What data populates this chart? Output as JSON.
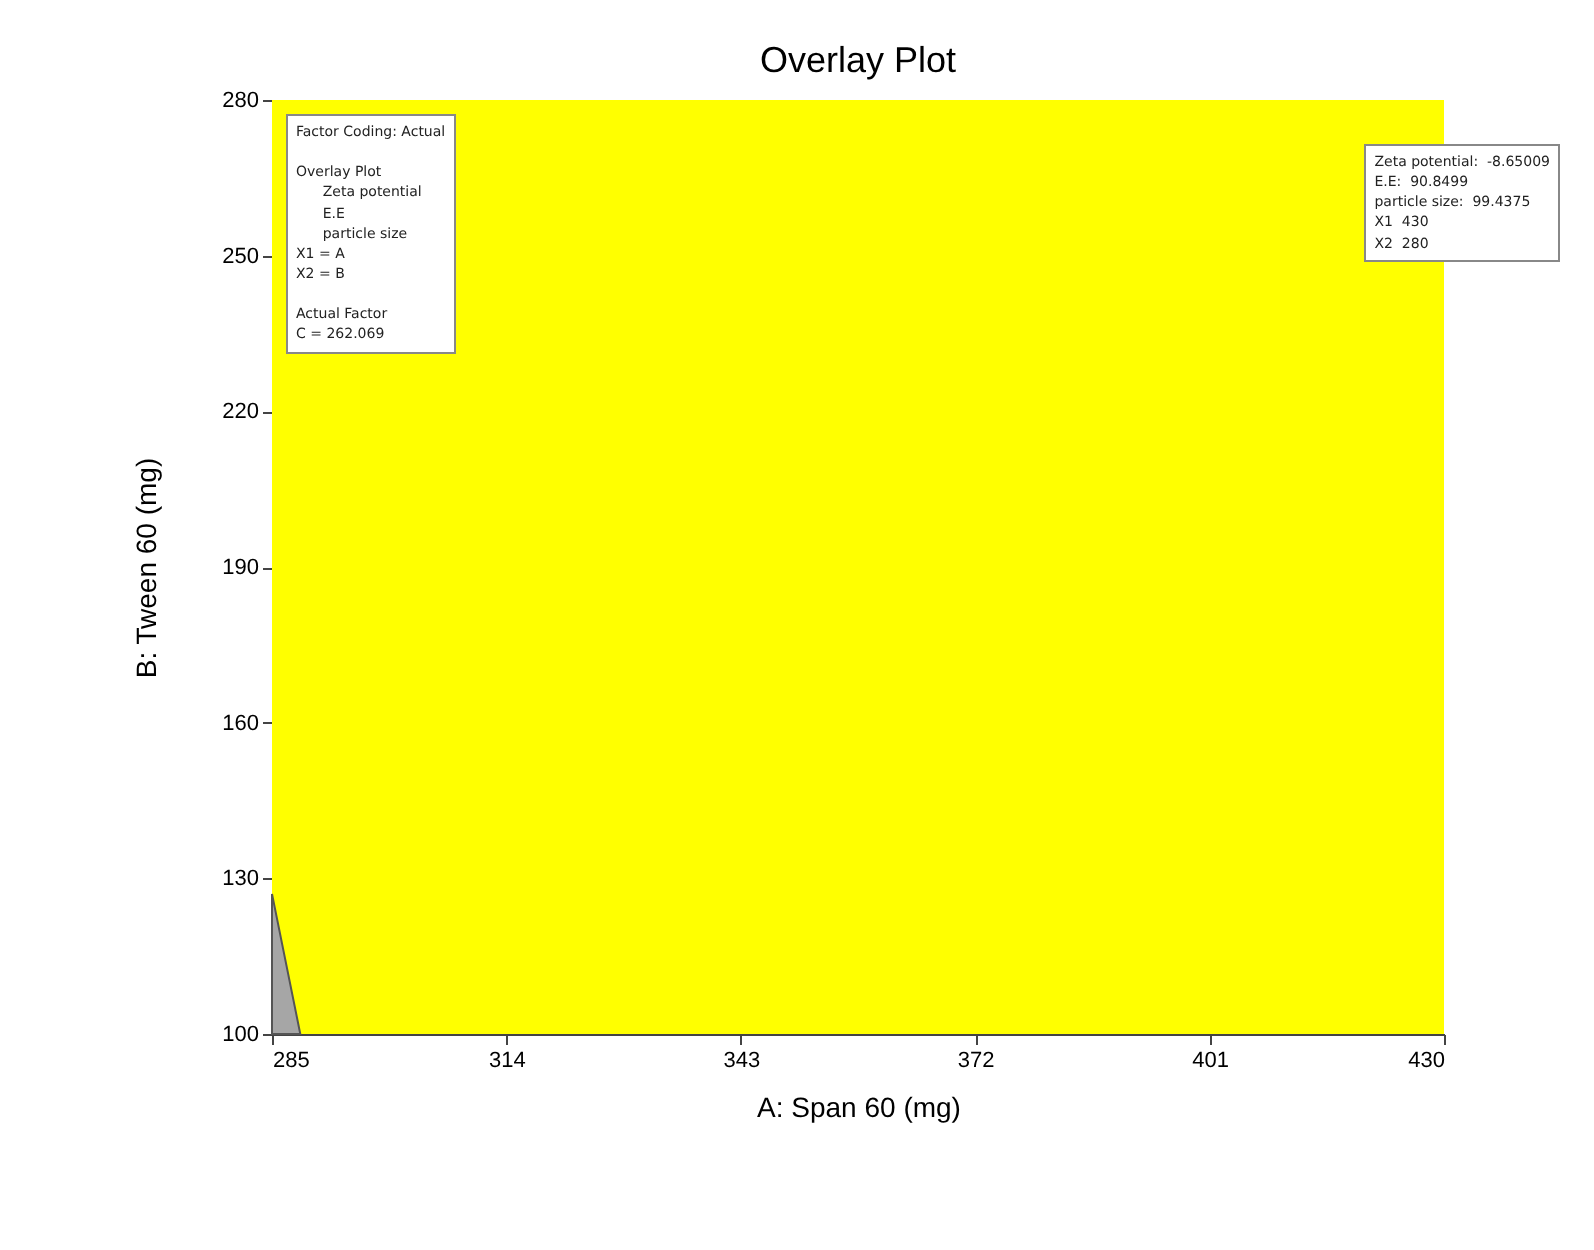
{
  "chart_data": {
    "type": "area",
    "title": "Overlay Plot",
    "xlabel": "A: Span 60 (mg)",
    "ylabel": "B: Tween 60 (mg)",
    "series": [
      {
        "color": "#a6a6a6",
        "x": [
          285,
          288.5
        ],
        "values": [
          127,
          100
        ]
      }
    ],
    "bands": [
      {
        "axis": "y",
        "from": 100,
        "to": 280,
        "color": "#ffff00"
      }
    ],
    "xlim": [
      285,
      430
    ],
    "xticks": [
      285,
      314,
      343,
      372,
      401,
      430
    ],
    "ylim": [
      100,
      280
    ],
    "yticks": [
      100,
      130,
      160,
      190,
      220,
      250,
      280
    ],
    "grid": false,
    "annotations": [
      "Factor Coding: Actual\n\nOverlay Plot\n      Zeta potential\n      E.E\n      particle size\nX1 = A\nX2 = B\n\nActual Factor\nC = 262.069",
      "Zeta potential:  -8.65009\nE.E:  90.8499\nparticle size:  99.4375\nX1  430\nX2  280"
    ]
  }
}
